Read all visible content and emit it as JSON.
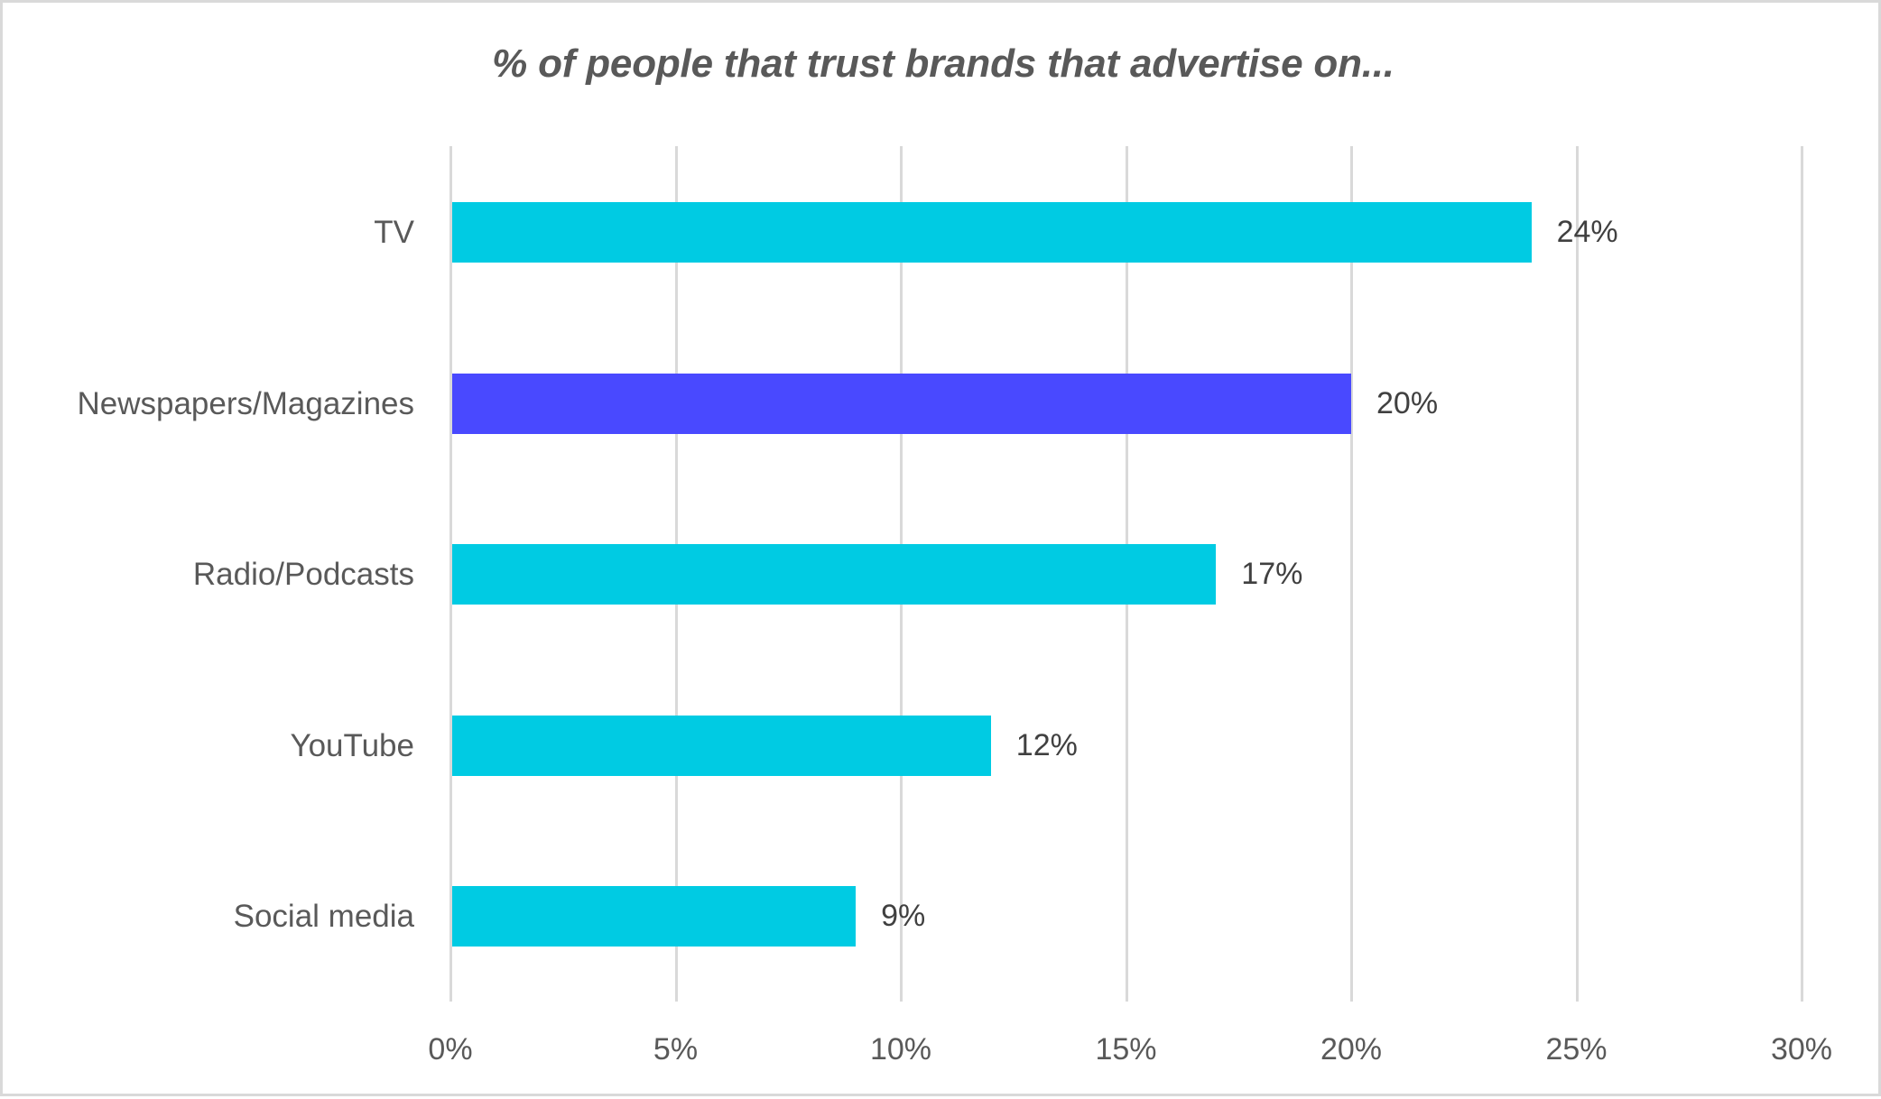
{
  "chart_data": {
    "type": "bar",
    "orientation": "horizontal",
    "title": "% of people that trust brands that advertise on...",
    "xlabel": "",
    "ylabel": "",
    "categories": [
      "TV",
      "Newspapers/Magazines",
      "Radio/Podcasts",
      "YouTube",
      "Social media"
    ],
    "values": [
      24,
      20,
      17,
      12,
      9
    ],
    "value_labels": [
      "24%",
      "20%",
      "17%",
      "12%",
      "9%"
    ],
    "unit": "%",
    "xlim": [
      0,
      30
    ],
    "x_ticks": [
      0,
      5,
      10,
      15,
      20,
      25,
      30
    ],
    "x_tick_labels": [
      "0%",
      "5%",
      "10%",
      "15%",
      "20%",
      "25%",
      "30%"
    ],
    "grid": "vertical",
    "legend": "none",
    "bar_colors": [
      "#00CBE3",
      "#4949FF",
      "#00CBE3",
      "#00CBE3",
      "#00CBE3"
    ],
    "highlighted_category": "Newspapers/Magazines"
  },
  "colors": {
    "primary_bar": "#00CBE3",
    "highlight_bar": "#4949FF",
    "gridline": "#D9D9D9",
    "border": "#D9D9D9",
    "title_text": "#595959",
    "axis_text": "#595959",
    "value_text": "#404040"
  }
}
